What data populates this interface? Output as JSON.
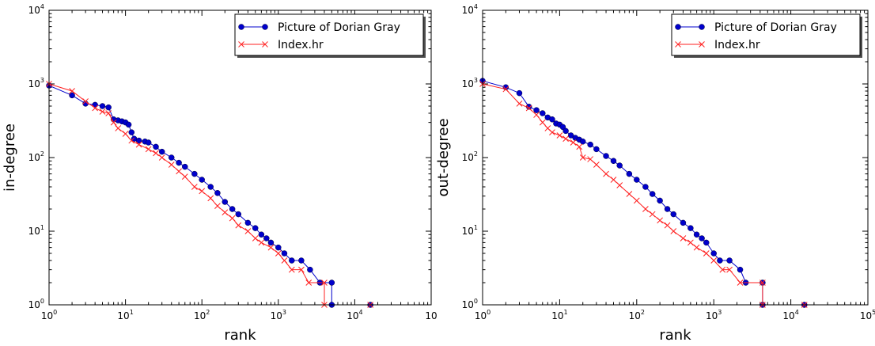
{
  "colors": {
    "picture_series": "#0000cc",
    "index_series": "#ff2222",
    "axes": "#000000",
    "legend_shadow": "#4d4d4d"
  },
  "chart_data": [
    {
      "type": "scatter",
      "scale": "log-log",
      "xlabel": "rank",
      "ylabel": "in-degree",
      "xlim": [
        1,
        100000
      ],
      "ylim": [
        1,
        10000
      ],
      "x_tick_labels": [
        {
          "base": "10",
          "exp": "0"
        },
        {
          "base": "10",
          "exp": "1"
        },
        {
          "base": "10",
          "exp": "2"
        },
        {
          "base": "10",
          "exp": "3"
        },
        {
          "base": "10",
          "exp": "4"
        },
        {
          "base": "10",
          "exp": ""
        }
      ],
      "y_tick_labels": [
        {
          "base": "10",
          "exp": "0"
        },
        {
          "base": "10",
          "exp": "1"
        },
        {
          "base": "10",
          "exp": "2"
        },
        {
          "base": "10",
          "exp": "3"
        },
        {
          "base": "10",
          "exp": "4"
        }
      ],
      "grid": false,
      "legend_position": "top-right",
      "series": [
        {
          "name": "Picture of Dorian Gray",
          "marker": "circle",
          "color": "#0000cc",
          "points": [
            [
              1,
              950
            ],
            [
              2,
              700
            ],
            [
              3,
              540
            ],
            [
              4,
              520
            ],
            [
              5,
              500
            ],
            [
              6,
              480
            ],
            [
              7,
              330
            ],
            [
              8,
              320
            ],
            [
              9,
              310
            ],
            [
              10,
              300
            ],
            [
              11,
              280
            ],
            [
              12,
              220
            ],
            [
              13,
              180
            ],
            [
              15,
              170
            ],
            [
              18,
              165
            ],
            [
              20,
              160
            ],
            [
              25,
              140
            ],
            [
              30,
              120
            ],
            [
              40,
              100
            ],
            [
              50,
              85
            ],
            [
              60,
              75
            ],
            [
              80,
              60
            ],
            [
              100,
              50
            ],
            [
              130,
              40
            ],
            [
              160,
              33
            ],
            [
              200,
              25
            ],
            [
              250,
              20
            ],
            [
              300,
              17
            ],
            [
              400,
              13
            ],
            [
              500,
              11
            ],
            [
              600,
              9
            ],
            [
              700,
              8
            ],
            [
              800,
              7
            ],
            [
              1000,
              6
            ],
            [
              1200,
              5
            ],
            [
              1500,
              4
            ],
            [
              2000,
              4
            ],
            [
              2600,
              3
            ],
            [
              3500,
              2
            ],
            [
              5000,
              2
            ],
            [
              5000,
              1
            ],
            [
              16000,
              1
            ]
          ]
        },
        {
          "name": "Index.hr",
          "marker": "x",
          "color": "#ff2222",
          "points": [
            [
              1,
              1000
            ],
            [
              2,
              800
            ],
            [
              3,
              580
            ],
            [
              4,
              470
            ],
            [
              5,
              420
            ],
            [
              6,
              400
            ],
            [
              7,
              300
            ],
            [
              8,
              250
            ],
            [
              10,
              210
            ],
            [
              12,
              170
            ],
            [
              15,
              150
            ],
            [
              20,
              130
            ],
            [
              25,
              115
            ],
            [
              30,
              100
            ],
            [
              40,
              80
            ],
            [
              50,
              65
            ],
            [
              60,
              55
            ],
            [
              80,
              40
            ],
            [
              100,
              35
            ],
            [
              130,
              28
            ],
            [
              160,
              22
            ],
            [
              200,
              18
            ],
            [
              250,
              15
            ],
            [
              300,
              12
            ],
            [
              400,
              10
            ],
            [
              500,
              8
            ],
            [
              600,
              7
            ],
            [
              800,
              6
            ],
            [
              1000,
              5
            ],
            [
              1200,
              4
            ],
            [
              1500,
              3
            ],
            [
              2000,
              3
            ],
            [
              2500,
              2
            ],
            [
              4000,
              2
            ],
            [
              4000,
              1
            ],
            [
              16000,
              1
            ]
          ]
        }
      ]
    },
    {
      "type": "scatter",
      "scale": "log-log",
      "xlabel": "rank",
      "ylabel": "out-degree",
      "xlim": [
        1,
        100000
      ],
      "ylim": [
        1,
        10000
      ],
      "x_tick_labels": [
        {
          "base": "10",
          "exp": "0"
        },
        {
          "base": "10",
          "exp": "1"
        },
        {
          "base": "10",
          "exp": "2"
        },
        {
          "base": "10",
          "exp": "3"
        },
        {
          "base": "10",
          "exp": "4"
        },
        {
          "base": "10",
          "exp": "5"
        }
      ],
      "y_tick_labels": [
        {
          "base": "10",
          "exp": "0"
        },
        {
          "base": "10",
          "exp": "1"
        },
        {
          "base": "10",
          "exp": "2"
        },
        {
          "base": "10",
          "exp": "3"
        },
        {
          "base": "10",
          "exp": "4"
        }
      ],
      "grid": false,
      "legend_position": "top-right",
      "series": [
        {
          "name": "Picture of Dorian Gray",
          "marker": "circle",
          "color": "#0000cc",
          "points": [
            [
              1,
              1100
            ],
            [
              2,
              900
            ],
            [
              3,
              750
            ],
            [
              4,
              490
            ],
            [
              5,
              440
            ],
            [
              6,
              400
            ],
            [
              7,
              350
            ],
            [
              8,
              330
            ],
            [
              9,
              290
            ],
            [
              10,
              280
            ],
            [
              11,
              260
            ],
            [
              12,
              230
            ],
            [
              14,
              200
            ],
            [
              16,
              185
            ],
            [
              18,
              175
            ],
            [
              20,
              165
            ],
            [
              25,
              150
            ],
            [
              30,
              130
            ],
            [
              40,
              105
            ],
            [
              50,
              90
            ],
            [
              60,
              78
            ],
            [
              80,
              60
            ],
            [
              100,
              50
            ],
            [
              130,
              40
            ],
            [
              160,
              32
            ],
            [
              200,
              26
            ],
            [
              250,
              20
            ],
            [
              300,
              17
            ],
            [
              400,
              13
            ],
            [
              500,
              11
            ],
            [
              600,
              9
            ],
            [
              700,
              8
            ],
            [
              800,
              7
            ],
            [
              1000,
              5
            ],
            [
              1200,
              4
            ],
            [
              1600,
              4
            ],
            [
              2200,
              3
            ],
            [
              2600,
              2
            ],
            [
              4300,
              2
            ],
            [
              4300,
              1
            ],
            [
              15000,
              1
            ]
          ]
        },
        {
          "name": "Index.hr",
          "marker": "x",
          "color": "#ff2222",
          "points": [
            [
              1,
              1000
            ],
            [
              2,
              850
            ],
            [
              3,
              540
            ],
            [
              4,
              470
            ],
            [
              5,
              380
            ],
            [
              6,
              300
            ],
            [
              7,
              250
            ],
            [
              8,
              220
            ],
            [
              10,
              200
            ],
            [
              12,
              180
            ],
            [
              15,
              160
            ],
            [
              18,
              140
            ],
            [
              20,
              100
            ],
            [
              25,
              95
            ],
            [
              30,
              80
            ],
            [
              40,
              60
            ],
            [
              50,
              50
            ],
            [
              60,
              42
            ],
            [
              80,
              32
            ],
            [
              100,
              26
            ],
            [
              130,
              20
            ],
            [
              160,
              17
            ],
            [
              200,
              14
            ],
            [
              250,
              12
            ],
            [
              300,
              10
            ],
            [
              400,
              8
            ],
            [
              500,
              7
            ],
            [
              600,
              6
            ],
            [
              800,
              5
            ],
            [
              1000,
              4
            ],
            [
              1300,
              3
            ],
            [
              1600,
              3
            ],
            [
              2200,
              2
            ],
            [
              4300,
              2
            ],
            [
              4300,
              1
            ],
            [
              15000,
              1
            ]
          ]
        }
      ]
    }
  ]
}
